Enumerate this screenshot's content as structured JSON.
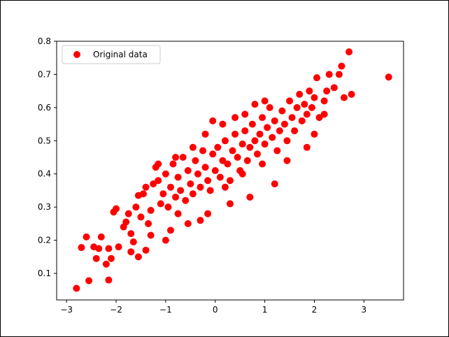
{
  "chart_data": {
    "type": "scatter",
    "title": "",
    "xlabel": "",
    "ylabel": "",
    "xlim": [
      -3.2,
      3.8
    ],
    "ylim": [
      0.02,
      0.8
    ],
    "x_ticks": [
      -3,
      -2,
      -1,
      0,
      1,
      2,
      3
    ],
    "y_ticks": [
      0.1,
      0.2,
      0.3,
      0.4,
      0.5,
      0.6,
      0.7,
      0.8
    ],
    "grid": false,
    "legend_position": "upper-left",
    "series": [
      {
        "name": "Original data",
        "color": "#ff0000",
        "marker": "circle",
        "points": [
          [
            -2.8,
            0.055
          ],
          [
            -2.55,
            0.078
          ],
          [
            -2.15,
            0.08
          ],
          [
            -2.7,
            0.178
          ],
          [
            -2.6,
            0.21
          ],
          [
            -2.45,
            0.18
          ],
          [
            -2.4,
            0.145
          ],
          [
            -2.35,
            0.175
          ],
          [
            -2.2,
            0.128
          ],
          [
            -2.1,
            0.145
          ],
          [
            -2.05,
            0.285
          ],
          [
            -2.0,
            0.295
          ],
          [
            -2.3,
            0.21
          ],
          [
            -2.15,
            0.175
          ],
          [
            -1.95,
            0.18
          ],
          [
            -1.85,
            0.24
          ],
          [
            -1.8,
            0.255
          ],
          [
            -1.75,
            0.28
          ],
          [
            -1.7,
            0.22
          ],
          [
            -1.65,
            0.195
          ],
          [
            -1.6,
            0.3
          ],
          [
            -1.55,
            0.335
          ],
          [
            -1.5,
            0.27
          ],
          [
            -1.45,
            0.34
          ],
          [
            -1.4,
            0.36
          ],
          [
            -1.35,
            0.25
          ],
          [
            -1.3,
            0.29
          ],
          [
            -1.25,
            0.37
          ],
          [
            -1.2,
            0.42
          ],
          [
            -1.15,
            0.38
          ],
          [
            -1.1,
            0.31
          ],
          [
            -1.05,
            0.34
          ],
          [
            -1.0,
            0.4
          ],
          [
            -0.95,
            0.3
          ],
          [
            -0.9,
            0.36
          ],
          [
            -0.85,
            0.43
          ],
          [
            -0.8,
            0.33
          ],
          [
            -0.75,
            0.39
          ],
          [
            -0.7,
            0.35
          ],
          [
            -0.65,
            0.45
          ],
          [
            -0.6,
            0.32
          ],
          [
            -0.55,
            0.41
          ],
          [
            -0.5,
            0.37
          ],
          [
            -0.45,
            0.34
          ],
          [
            -0.4,
            0.44
          ],
          [
            -0.35,
            0.4
          ],
          [
            -0.3,
            0.36
          ],
          [
            -0.25,
            0.47
          ],
          [
            -0.2,
            0.42
          ],
          [
            -0.15,
            0.38
          ],
          [
            -0.1,
            0.35
          ],
          [
            -0.05,
            0.46
          ],
          [
            0.0,
            0.41
          ],
          [
            0.05,
            0.48
          ],
          [
            0.1,
            0.39
          ],
          [
            0.15,
            0.44
          ],
          [
            0.2,
            0.5
          ],
          [
            0.25,
            0.43
          ],
          [
            0.3,
            0.38
          ],
          [
            0.35,
            0.47
          ],
          [
            0.4,
            0.52
          ],
          [
            0.45,
            0.45
          ],
          [
            0.5,
            0.41
          ],
          [
            0.55,
            0.49
          ],
          [
            0.6,
            0.53
          ],
          [
            0.65,
            0.44
          ],
          [
            0.7,
            0.48
          ],
          [
            0.75,
            0.55
          ],
          [
            0.8,
            0.5
          ],
          [
            0.85,
            0.46
          ],
          [
            0.9,
            0.52
          ],
          [
            0.95,
            0.57
          ],
          [
            1.0,
            0.49
          ],
          [
            1.05,
            0.54
          ],
          [
            1.1,
            0.6
          ],
          [
            1.15,
            0.51
          ],
          [
            1.2,
            0.56
          ],
          [
            1.25,
            0.47
          ],
          [
            1.3,
            0.53
          ],
          [
            1.35,
            0.59
          ],
          [
            1.4,
            0.55
          ],
          [
            1.45,
            0.5
          ],
          [
            1.5,
            0.62
          ],
          [
            1.55,
            0.57
          ],
          [
            1.6,
            0.53
          ],
          [
            1.65,
            0.6
          ],
          [
            1.7,
            0.64
          ],
          [
            1.75,
            0.56
          ],
          [
            1.8,
            0.61
          ],
          [
            1.85,
            0.58
          ],
          [
            1.9,
            0.65
          ],
          [
            1.95,
            0.6
          ],
          [
            2.0,
            0.63
          ],
          [
            2.05,
            0.69
          ],
          [
            2.1,
            0.57
          ],
          [
            2.2,
            0.62
          ],
          [
            2.25,
            0.65
          ],
          [
            2.3,
            0.7
          ],
          [
            2.4,
            0.66
          ],
          [
            2.5,
            0.7
          ],
          [
            2.55,
            0.725
          ],
          [
            2.6,
            0.63
          ],
          [
            2.7,
            0.768
          ],
          [
            2.75,
            0.64
          ],
          [
            3.5,
            0.692
          ],
          [
            1.85,
            0.48
          ],
          [
            2.0,
            0.52
          ],
          [
            2.2,
            0.58
          ],
          [
            1.45,
            0.44
          ],
          [
            1.2,
            0.37
          ],
          [
            0.7,
            0.33
          ],
          [
            0.3,
            0.31
          ],
          [
            -0.15,
            0.28
          ],
          [
            -0.3,
            0.26
          ],
          [
            -0.55,
            0.25
          ],
          [
            -0.9,
            0.23
          ],
          [
            -1.0,
            0.2
          ],
          [
            -1.4,
            0.17
          ],
          [
            -1.55,
            0.15
          ],
          [
            -1.7,
            0.165
          ],
          [
            -1.3,
            0.215
          ],
          [
            -0.75,
            0.28
          ],
          [
            0.2,
            0.36
          ],
          [
            0.55,
            0.4
          ],
          [
            0.95,
            0.43
          ],
          [
            -0.2,
            0.52
          ],
          [
            0.15,
            0.55
          ],
          [
            0.4,
            0.57
          ],
          [
            0.8,
            0.61
          ],
          [
            1.0,
            0.62
          ],
          [
            -0.45,
            0.48
          ],
          [
            -0.8,
            0.45
          ],
          [
            -1.15,
            0.43
          ],
          [
            -0.05,
            0.56
          ],
          [
            0.6,
            0.58
          ]
        ]
      }
    ]
  }
}
